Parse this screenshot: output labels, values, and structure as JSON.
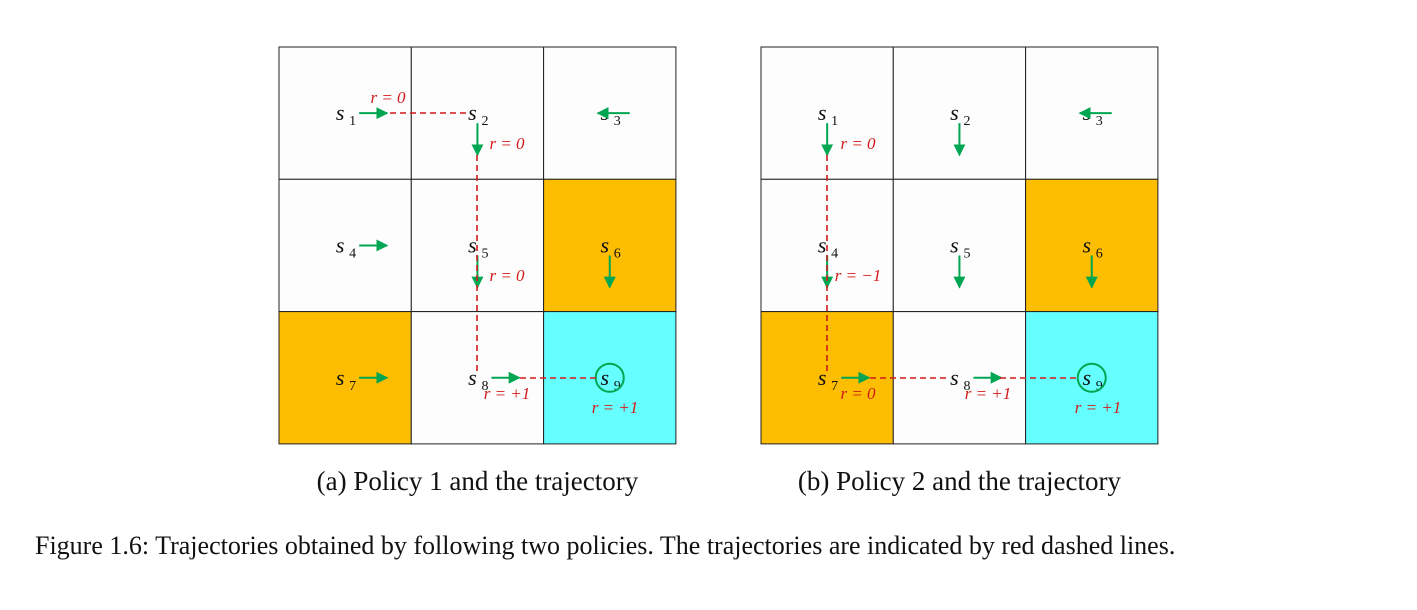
{
  "panels": [
    {
      "caption": "(a) Policy 1 and the trajectory",
      "states": [
        {
          "symbol": "s",
          "index": "1"
        },
        {
          "symbol": "s",
          "index": "2"
        },
        {
          "symbol": "s",
          "index": "3"
        },
        {
          "symbol": "s",
          "index": "4"
        },
        {
          "symbol": "s",
          "index": "5"
        },
        {
          "symbol": "s",
          "index": "6"
        },
        {
          "symbol": "s",
          "index": "7"
        },
        {
          "symbol": "s",
          "index": "8"
        },
        {
          "symbol": "s",
          "index": "9"
        }
      ],
      "rewards": [
        "r = 0",
        "r = 0",
        "r = 0",
        "r = +1",
        "r = +1"
      ]
    },
    {
      "caption": "(b) Policy 2 and the trajectory",
      "states": [
        {
          "symbol": "s",
          "index": "1"
        },
        {
          "symbol": "s",
          "index": "2"
        },
        {
          "symbol": "s",
          "index": "3"
        },
        {
          "symbol": "s",
          "index": "4"
        },
        {
          "symbol": "s",
          "index": "5"
        },
        {
          "symbol": "s",
          "index": "6"
        },
        {
          "symbol": "s",
          "index": "7"
        },
        {
          "symbol": "s",
          "index": "8"
        },
        {
          "symbol": "s",
          "index": "9"
        }
      ],
      "rewards": [
        "r = 0",
        "r = −1",
        "r = 0",
        "r = +1",
        "r = +1"
      ]
    }
  ],
  "caption": "Figure 1.6: Trajectories obtained by following two policies. The trajectories are indicated by red dashed lines."
}
